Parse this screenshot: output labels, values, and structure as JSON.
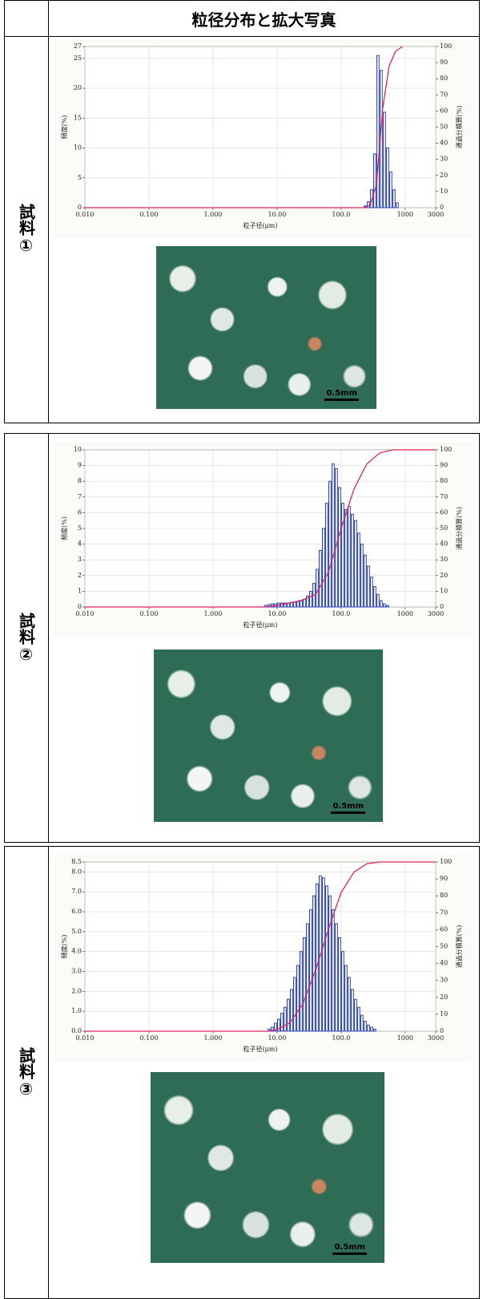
{
  "table": {
    "header": "粒径分布と拡大写真",
    "rows": [
      {
        "label": "試料①",
        "scale": "0.5mm"
      },
      {
        "label": "試料②",
        "scale": "0.5mm"
      },
      {
        "label": "試料③",
        "scale": "0.5mm"
      }
    ]
  },
  "chart_data": [
    {
      "type": "histogram",
      "xlabel": "粒子径(μm)",
      "ylabel": "頻度(%)",
      "y2label": "通過分積算(%)",
      "xscale": "log",
      "grid": true,
      "xlim": [
        0.01,
        3000
      ],
      "xticks": [
        {
          "value": 0.01,
          "label": "0.010"
        },
        {
          "value": 0.1,
          "label": "0.100"
        },
        {
          "value": 1,
          "label": "1.000"
        },
        {
          "value": 10,
          "label": "10.00"
        },
        {
          "value": 100,
          "label": "100.0"
        },
        1000,
        3000
      ],
      "ylim": [
        0,
        27
      ],
      "yticks": [
        0,
        5,
        10,
        15,
        20,
        25,
        27
      ],
      "y2lim": [
        0,
        100
      ],
      "y2ticks": [
        0,
        10,
        20,
        30,
        40,
        50,
        60,
        70,
        80,
        90,
        100
      ],
      "color": "#2b3fae",
      "bins": [
        223.9,
        251.2,
        281.8,
        316.2,
        354.8,
        398.1,
        446.7,
        501.2,
        562.3,
        631,
        707.9,
        794.3
      ],
      "values": [
        0.3,
        1,
        3,
        9,
        25.5,
        23,
        16,
        10,
        6,
        3,
        0.8
      ],
      "cumulative": {
        "axis": "y2",
        "color": "#e0245e",
        "x": [
          0.01,
          223.9,
          281.8,
          354.8,
          446.7,
          562.3,
          707.9,
          900
        ],
        "values": [
          0,
          0,
          1.5,
          14,
          62,
          88,
          97,
          100
        ]
      }
    },
    {
      "type": "histogram",
      "xlabel": "粒子径(μm)",
      "ylabel": "頻度(%)",
      "y2label": "通過分積算(%)",
      "xscale": "log",
      "grid": true,
      "xlim": [
        0.01,
        3000
      ],
      "xticks": [
        {
          "value": 0.01,
          "label": "0.010"
        },
        {
          "value": 0.1,
          "label": "0.100"
        },
        {
          "value": 1,
          "label": "1.000"
        },
        {
          "value": 10,
          "label": "10.00"
        },
        {
          "value": 100,
          "label": "100.0"
        },
        1000,
        3000
      ],
      "ylim": [
        0,
        10
      ],
      "yticks": [
        0,
        1,
        2,
        3,
        4,
        5,
        6,
        7,
        8,
        9,
        10
      ],
      "y2lim": [
        0,
        100
      ],
      "y2ticks": [
        0,
        10,
        20,
        30,
        40,
        50,
        60,
        70,
        80,
        90,
        100
      ],
      "color": "#2b3fae",
      "bins": [
        6.31,
        7.08,
        7.94,
        8.91,
        10,
        11.22,
        12.59,
        14.13,
        15.85,
        17.78,
        19.95,
        22.39,
        25.12,
        28.18,
        31.62,
        35.48,
        39.81,
        44.67,
        50.12,
        56.23,
        63.1,
        70.79,
        79.43,
        89.13,
        100,
        112.2,
        125.9,
        141.3,
        158.5,
        177.8,
        199.5,
        223.9,
        251.2,
        281.8,
        316.2,
        354.8,
        398.1,
        446.7,
        501.2,
        562.3
      ],
      "values": [
        0.1,
        0.15,
        0.2,
        0.2,
        0.25,
        0.25,
        0.25,
        0.25,
        0.3,
        0.3,
        0.35,
        0.4,
        0.5,
        0.7,
        1,
        1.5,
        2.4,
        3.6,
        5,
        6.6,
        8,
        9.1,
        8.8,
        7.6,
        6.6,
        6.2,
        6.4,
        5.9,
        5.5,
        4.7,
        4,
        3.3,
        2.6,
        1.9,
        1.3,
        0.8,
        0.4,
        0.2,
        0.1
      ],
      "cumulative": {
        "axis": "y2",
        "color": "#e0245e",
        "x": [
          0.01,
          6.31,
          10,
          15.85,
          25.12,
          39.81,
          63.1,
          100,
          158.5,
          251.2,
          398.1,
          631,
          1000,
          3000
        ],
        "values": [
          0,
          0,
          1,
          2.5,
          4.5,
          8,
          22,
          50,
          75,
          91,
          98,
          100,
          100,
          100
        ]
      }
    },
    {
      "type": "histogram",
      "xlabel": "粒子径(μm)",
      "ylabel": "頻度(%)",
      "y2label": "通過分積算(%)",
      "xscale": "log",
      "grid": true,
      "xlim": [
        0.01,
        3000
      ],
      "xticks": [
        {
          "value": 0.01,
          "label": "0.010"
        },
        {
          "value": 0.1,
          "label": "0.100"
        },
        {
          "value": 1,
          "label": "1.000"
        },
        {
          "value": 10,
          "label": "10.00"
        },
        {
          "value": 100,
          "label": "100.0"
        },
        1000,
        3000
      ],
      "ylim": [
        0,
        8.5
      ],
      "yticks": [
        {
          "value": 0,
          "label": "0.0"
        },
        {
          "value": 1,
          "label": "1.0"
        },
        {
          "value": 2,
          "label": "2.0"
        },
        {
          "value": 3,
          "label": "3.0"
        },
        {
          "value": 4,
          "label": "4.0"
        },
        {
          "value": 5,
          "label": "5.0"
        },
        {
          "value": 6,
          "label": "6.0"
        },
        {
          "value": 7,
          "label": "7.0"
        },
        {
          "value": 8,
          "label": "8.0"
        },
        {
          "value": 8.5,
          "label": "8.5"
        }
      ],
      "y2lim": [
        0,
        100
      ],
      "y2ticks": [
        0,
        10,
        20,
        30,
        40,
        50,
        60,
        70,
        80,
        90,
        100
      ],
      "color": "#2b3fae",
      "bins": [
        7.08,
        7.94,
        8.91,
        10,
        11.22,
        12.59,
        14.13,
        15.85,
        17.78,
        19.95,
        22.39,
        25.12,
        28.18,
        31.62,
        35.48,
        39.81,
        44.67,
        50.12,
        56.23,
        63.1,
        70.79,
        79.43,
        89.13,
        100,
        112.2,
        125.9,
        141.3,
        158.5,
        177.8,
        199.5,
        223.9,
        251.2,
        281.8,
        316.2,
        354.8
      ],
      "values": [
        0.1,
        0.2,
        0.4,
        0.6,
        0.9,
        1.2,
        1.6,
        2.1,
        2.7,
        3.3,
        4,
        4.7,
        5.4,
        6.1,
        6.8,
        7.4,
        7.8,
        7.7,
        7.3,
        6.8,
        6.1,
        5.4,
        4.7,
        4,
        3.3,
        2.7,
        2.1,
        1.6,
        1.2,
        0.8,
        0.5,
        0.3,
        0.2,
        0.1
      ],
      "cumulative": {
        "axis": "y2",
        "color": "#e0245e",
        "x": [
          0.01,
          7.08,
          10,
          15.85,
          25.12,
          39.81,
          63.1,
          100,
          158.5,
          251.2,
          398.1,
          631,
          1000,
          3000
        ],
        "values": [
          0,
          0,
          1,
          5,
          16,
          36,
          60,
          82,
          94,
          99,
          100,
          100,
          100,
          100
        ]
      }
    }
  ]
}
